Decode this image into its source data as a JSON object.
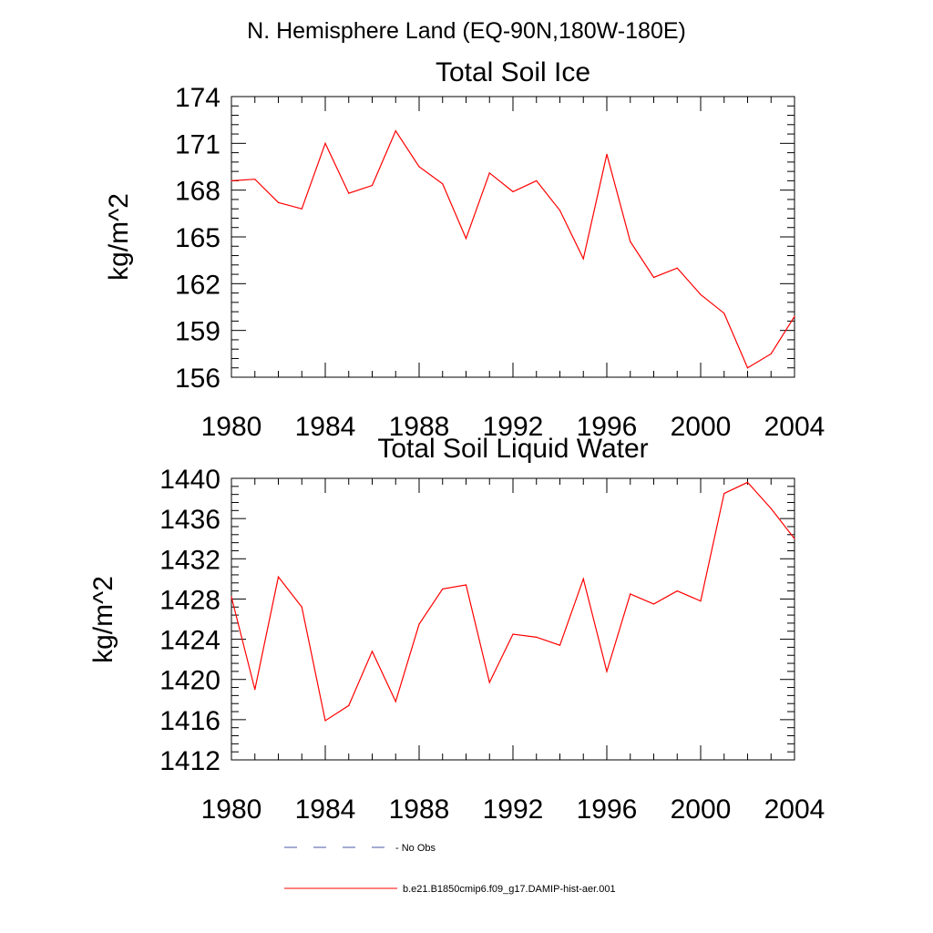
{
  "page_title": "N. Hemisphere Land (EQ-90N,180W-180E)",
  "chart_data": [
    {
      "type": "line",
      "title": "Total Soil Ice",
      "xlabel": "",
      "ylabel": "kg/m^2",
      "xlim": [
        1980,
        2004
      ],
      "ylim": [
        156,
        174
      ],
      "xticks": [
        "1980",
        "1984",
        "1988",
        "1992",
        "1996",
        "2000",
        "2004"
      ],
      "yticks": [
        "156",
        "159",
        "162",
        "165",
        "168",
        "171",
        "174"
      ],
      "grid": false,
      "x": [
        1980,
        1981,
        1982,
        1983,
        1984,
        1985,
        1986,
        1987,
        1988,
        1989,
        1990,
        1991,
        1992,
        1993,
        1994,
        1995,
        1996,
        1997,
        1998,
        1999,
        2000,
        2001,
        2002,
        2003,
        2004
      ],
      "series": [
        {
          "name": "b.e21.B1850cmip6.f09_g17.DAMIP-hist-aer.001",
          "color": "#ff0000",
          "values": [
            168.6,
            168.7,
            167.2,
            166.8,
            171.0,
            167.8,
            168.3,
            171.8,
            169.5,
            168.4,
            164.9,
            169.1,
            167.9,
            168.6,
            166.7,
            163.6,
            170.3,
            164.7,
            162.4,
            163.0,
            161.3,
            160.1,
            156.6,
            157.5,
            159.9
          ]
        }
      ]
    },
    {
      "type": "line",
      "title": "Total Soil Liquid Water",
      "xlabel": "",
      "ylabel": "kg/m^2",
      "xlim": [
        1980,
        2004
      ],
      "ylim": [
        1412,
        1440
      ],
      "xticks": [
        "1980",
        "1984",
        "1988",
        "1992",
        "1996",
        "2000",
        "2004"
      ],
      "yticks": [
        "1412",
        "1416",
        "1420",
        "1424",
        "1428",
        "1432",
        "1436",
        "1440"
      ],
      "grid": false,
      "x": [
        1980,
        1981,
        1982,
        1983,
        1984,
        1985,
        1986,
        1987,
        1988,
        1989,
        1990,
        1991,
        1992,
        1993,
        1994,
        1995,
        1996,
        1997,
        1998,
        1999,
        2000,
        2001,
        2002,
        2003,
        2004
      ],
      "series": [
        {
          "name": "b.e21.B1850cmip6.f09_g17.DAMIP-hist-aer.001",
          "color": "#ff0000",
          "values": [
            1428.2,
            1419.0,
            1430.2,
            1427.2,
            1415.9,
            1417.4,
            1422.8,
            1417.8,
            1425.5,
            1429.0,
            1429.4,
            1419.7,
            1424.5,
            1424.2,
            1423.4,
            1430.0,
            1420.8,
            1428.5,
            1427.5,
            1428.8,
            1427.8,
            1438.5,
            1439.6,
            1437.0,
            1434.0
          ]
        }
      ]
    }
  ],
  "legend": {
    "position": "bottom",
    "items": [
      {
        "label": "- No Obs",
        "color": "#4a5aa8",
        "style": "dashed"
      },
      {
        "label": "b.e21.B1850cmip6.f09_g17.DAMIP-hist-aer.001",
        "color": "#ff0000",
        "style": "solid"
      }
    ]
  }
}
